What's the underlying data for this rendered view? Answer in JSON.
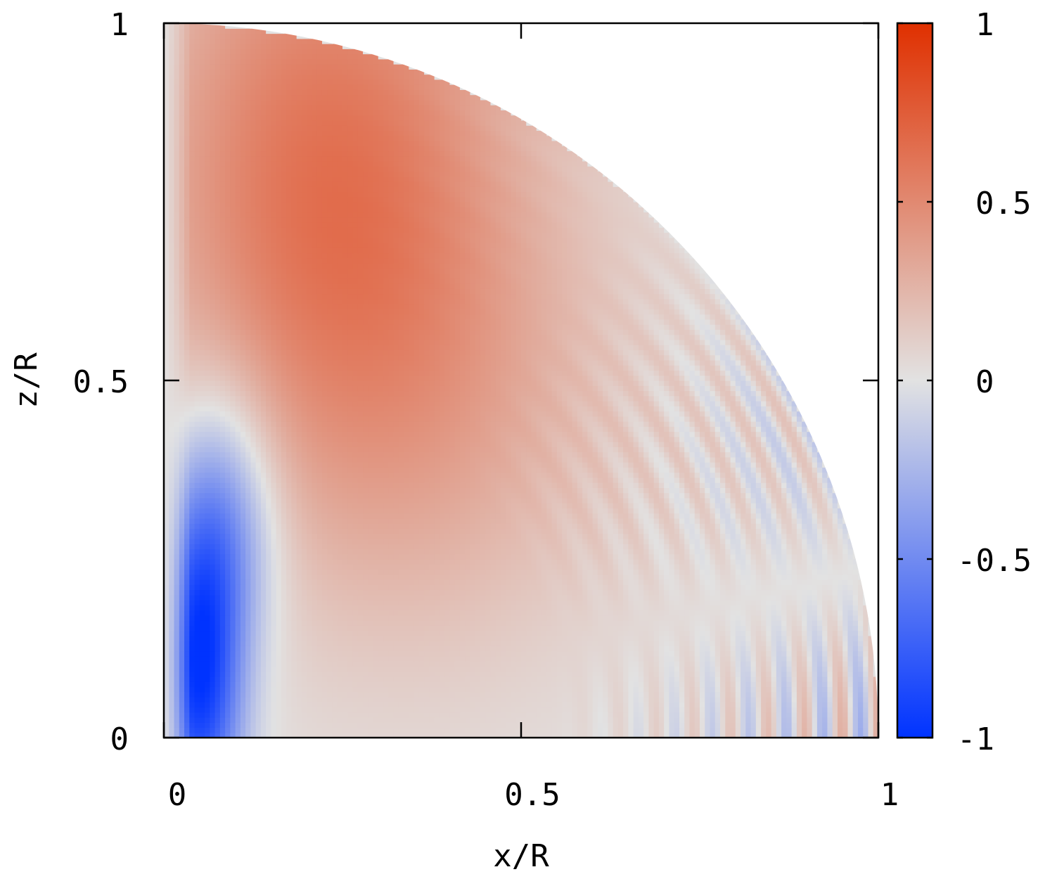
{
  "chart_data": {
    "type": "heatmap",
    "title": "",
    "xlabel": "x/R",
    "ylabel": "z/R",
    "xlim": [
      0,
      1
    ],
    "ylim": [
      0,
      1
    ],
    "x_ticks": [
      "0",
      "0.5",
      "1"
    ],
    "y_ticks": [
      "0",
      "0.5",
      "1"
    ],
    "domain_shape": "quarter disk, x^2 + z^2 <= 1",
    "colorbar": {
      "range": [
        -1,
        1
      ],
      "ticks": [
        "-1",
        "-0.5",
        "0",
        "0.5",
        "1"
      ],
      "colors": {
        "min": "#0033ff",
        "mid": "#e2e2e2",
        "max": "#e03000"
      }
    },
    "features": [
      {
        "label": "negative lobe",
        "x": 0.05,
        "z": 0.08,
        "value": -0.95
      },
      {
        "label": "positive lobe",
        "x": 0.22,
        "z": 0.82,
        "value": 0.55
      },
      {
        "label": "oscillating wave pattern near equator",
        "x_range": [
          0.55,
          1.0
        ],
        "z_range": [
          0.0,
          0.45
        ],
        "amplitude": 0.3
      }
    ],
    "grid": false
  }
}
